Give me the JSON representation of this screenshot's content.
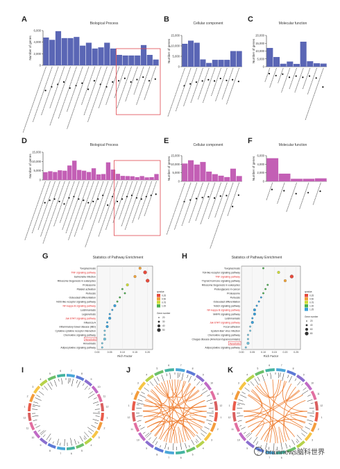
{
  "figure": {
    "panels": {
      "A": {
        "letter": "A",
        "title": "Biological Process"
      },
      "B": {
        "letter": "B",
        "title": "Cellular component"
      },
      "C": {
        "letter": "C",
        "title": "Molecular function"
      },
      "D": {
        "letter": "D",
        "title": "Biological Process"
      },
      "E": {
        "letter": "E",
        "title": "Cellular component"
      },
      "F": {
        "letter": "F",
        "title": "Molecular function"
      },
      "G": {
        "letter": "G",
        "title": "Statistics of Pathway Enrichment"
      },
      "H": {
        "letter": "H",
        "title": "Statistics of Pathway Enrichment"
      },
      "I": {
        "letter": "I"
      },
      "J": {
        "letter": "J"
      },
      "K": {
        "letter": "K"
      }
    },
    "watermark": "brainnews脑科世界",
    "colors": {
      "blue": "#5a66b5",
      "magenta": "#c35fb5",
      "highlight": "#e0474f",
      "chord": "#ee7b2c"
    }
  },
  "chart_data": [
    {
      "id": "A",
      "type": "bar",
      "title": "Biological Process",
      "ylabel": "Number of genes",
      "ylim": [
        0,
        6000
      ],
      "yticks": [
        "0",
        "2,000",
        "4,000",
        "6,000"
      ],
      "values": [
        4800,
        4400,
        5900,
        4700,
        4700,
        4900,
        3400,
        3900,
        2900,
        3100,
        3900,
        2900,
        1800,
        1700,
        1700,
        1700,
        3500,
        1800,
        1000
      ]
    },
    {
      "id": "B",
      "type": "bar",
      "title": "Cellular component",
      "ylabel": "Number of genes",
      "ylim": [
        0,
        15000
      ],
      "yticks": [
        "0",
        "5,000",
        "10,000",
        "15,000"
      ],
      "values": [
        11000,
        12500,
        11500,
        3500,
        1800,
        3300,
        3300,
        3300,
        7500,
        7500
      ]
    },
    {
      "id": "C",
      "type": "bar",
      "title": "Molecular function",
      "ylabel": "Number of genes",
      "ylim": [
        0,
        20000
      ],
      "yticks": [
        "0",
        "5,000",
        "10,000",
        "15,000",
        "20,000"
      ],
      "values": [
        12000,
        6200,
        1900,
        3300,
        1800,
        16000,
        3500,
        2200,
        2000
      ]
    },
    {
      "id": "D",
      "type": "bar",
      "title": "Biological Process",
      "ylabel": "Number of genes",
      "ylim": [
        0,
        15000
      ],
      "yticks": [
        "0",
        "5,000",
        "10,000",
        "15,000"
      ],
      "values": [
        4200,
        4700,
        4300,
        5200,
        5000,
        7800,
        10400,
        5400,
        5000,
        4300,
        6300,
        3000,
        3200,
        9500,
        5600,
        3300,
        2200,
        2100,
        2000,
        1500,
        2100,
        1400,
        1500,
        3200
      ]
    },
    {
      "id": "E",
      "type": "bar",
      "title": "Cellular component",
      "ylabel": "Number of genes",
      "ylim": [
        0,
        15000
      ],
      "yticks": [
        "0",
        "5,000",
        "10,000",
        "15,000"
      ],
      "values": [
        10400,
        12300,
        9800,
        11300,
        5700,
        4200,
        3300,
        2500,
        7400,
        3100
      ]
    },
    {
      "id": "F",
      "type": "bar",
      "title": "Molecular function",
      "ylabel": "Number of genes",
      "ylim": [
        0,
        6000
      ],
      "yticks": [
        "0",
        "2,000",
        "4,000",
        "6,000"
      ],
      "values": [
        5400,
        1800,
        600,
        600,
        700
      ]
    },
    {
      "id": "G",
      "type": "scatter",
      "title": "Statistics of Pathway Enrichment",
      "xlabel": "Rich Factor",
      "xticks": [
        "0.00",
        "0.05",
        "0.10",
        "0.15",
        "0.20"
      ],
      "xlim": [
        0,
        0.22
      ],
      "pathways": [
        {
          "name": "Toxoplasmosis",
          "hl": false,
          "x": 0.17,
          "size": 2
        },
        {
          "name": "TNF signaling pathway",
          "hl": true,
          "x": 0.19,
          "size": 3
        },
        {
          "name": "Salmonella infection",
          "hl": false,
          "x": 0.15,
          "size": 2
        },
        {
          "name": "Ribosome biogenesis in eukaryotes",
          "hl": false,
          "x": 0.2,
          "size": 3
        },
        {
          "name": "Proteasome",
          "hl": false,
          "x": 0.12,
          "size": 2
        },
        {
          "name": "Platelet activation",
          "hl": false,
          "x": 0.1,
          "size": 1
        },
        {
          "name": "Pertussis",
          "hl": false,
          "x": 0.11,
          "size": 1
        },
        {
          "name": "Osteoclast differentiation",
          "hl": false,
          "x": 0.09,
          "size": 1
        },
        {
          "name": "NOD-like receptor signaling pathway",
          "hl": false,
          "x": 0.08,
          "size": 1
        },
        {
          "name": "NF-kappa B signaling pathway",
          "hl": true,
          "x": 0.07,
          "size": 2
        },
        {
          "name": "Leishmaniasis",
          "hl": false,
          "x": 0.06,
          "size": 1
        },
        {
          "name": "Legionellosis",
          "hl": false,
          "x": 0.05,
          "size": 1
        },
        {
          "name": "Jak-STAT signaling pathway",
          "hl": true,
          "x": 0.05,
          "size": 2
        },
        {
          "name": "Influenza A",
          "hl": false,
          "x": 0.04,
          "size": 1
        },
        {
          "name": "Inflammatory bowel disease (IBD)",
          "hl": false,
          "x": 0.04,
          "size": 2
        },
        {
          "name": "Cytokine-cytokine receptor interaction",
          "hl": false,
          "x": 0.03,
          "size": 1
        },
        {
          "name": "Chemokine signaling pathway",
          "hl": false,
          "x": 0.03,
          "size": 1
        },
        {
          "name": "Apoptosis",
          "hl": true,
          "x": 0.03,
          "size": 2
        },
        {
          "name": "Amoebiasis",
          "hl": false,
          "x": 0.02,
          "size": 1
        },
        {
          "name": "Adipocytokine signaling pathway",
          "hl": false,
          "x": 0.02,
          "size": 1
        }
      ],
      "legend": {
        "title_q": "qvalue",
        "q": [
          "0.25",
          "0.50",
          "0.75",
          "1.00"
        ],
        "title_n": "Gene number",
        "n": [
          "20",
          "30",
          "40",
          "50"
        ]
      }
    },
    {
      "id": "H",
      "type": "scatter",
      "title": "Statistics of Pathway Enrichment",
      "xlabel": "Rich Factor",
      "xticks": [
        "0.00",
        "0.05",
        "0.10",
        "0.15",
        "0.20",
        "0.25"
      ],
      "xlim": [
        0,
        0.27
      ],
      "pathways": [
        {
          "name": "Toxoplasmosis",
          "hl": false,
          "x": 0.1,
          "size": 1
        },
        {
          "name": "Toll-like receptor signaling pathway",
          "hl": false,
          "x": 0.17,
          "size": 2
        },
        {
          "name": "TNF signaling pathway",
          "hl": true,
          "x": 0.23,
          "size": 3
        },
        {
          "name": "Thyroid hormone signaling pathway",
          "hl": false,
          "x": 0.2,
          "size": 2
        },
        {
          "name": "Ribosome biogenesis in eukaryotes",
          "hl": false,
          "x": 0.12,
          "size": 1
        },
        {
          "name": "Proteoglycans in cancer",
          "hl": false,
          "x": 0.11,
          "size": 1
        },
        {
          "name": "Proteasome",
          "hl": false,
          "x": 0.1,
          "size": 1
        },
        {
          "name": "Pertussis",
          "hl": false,
          "x": 0.09,
          "size": 1
        },
        {
          "name": "Osteoclast differentiation",
          "hl": false,
          "x": 0.08,
          "size": 1
        },
        {
          "name": "Notch signaling pathway",
          "hl": false,
          "x": 0.07,
          "size": 1
        },
        {
          "name": "NF-kappa B signaling pathway",
          "hl": true,
          "x": 0.06,
          "size": 2
        },
        {
          "name": "MAPK signaling pathway",
          "hl": false,
          "x": 0.06,
          "size": 2
        },
        {
          "name": "Leishmaniasis",
          "hl": false,
          "x": 0.05,
          "size": 1
        },
        {
          "name": "Jak-STAT signaling pathway",
          "hl": true,
          "x": 0.05,
          "size": 2
        },
        {
          "name": "Focal adhesion",
          "hl": false,
          "x": 0.04,
          "size": 1
        },
        {
          "name": "Epstein-Barr virus infection",
          "hl": false,
          "x": 0.04,
          "size": 1
        },
        {
          "name": "Chemokine signaling pathway",
          "hl": false,
          "x": 0.03,
          "size": 1
        },
        {
          "name": "Chagas disease (American trypanosomiasis)",
          "hl": false,
          "x": 0.03,
          "size": 1
        },
        {
          "name": "Apoptosis",
          "hl": true,
          "x": 0.03,
          "size": 2
        },
        {
          "name": "Adipocytokine signaling pathway",
          "hl": false,
          "x": 0.02,
          "size": 1
        }
      ],
      "legend": {
        "title_q": "qvalue",
        "q": [
          "0.25",
          "0.50",
          "0.75",
          "1.00",
          "1.25"
        ],
        "title_n": "Gene number",
        "n": [
          "20",
          "40",
          "60",
          "80"
        ]
      }
    }
  ]
}
